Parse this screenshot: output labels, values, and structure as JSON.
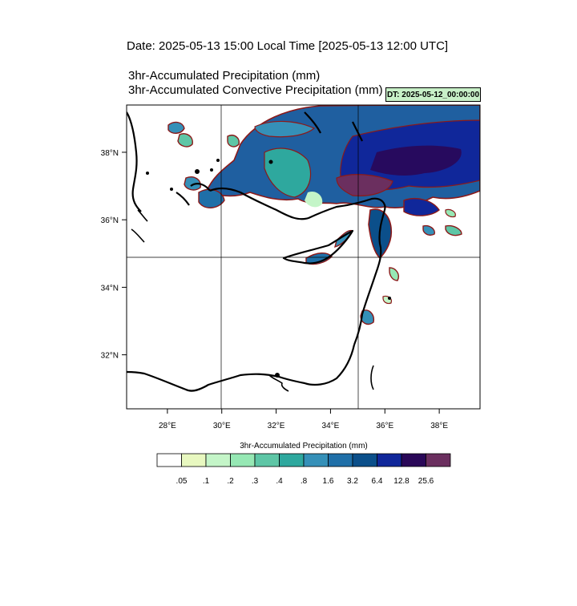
{
  "title": {
    "date_line": "Date: 2025-05-13  15:00 Local Time [2025-05-13  12:00 UTC]",
    "line1": "3hr-Accumulated Precipitation   (mm)",
    "line2": "3hr-Accumulated Convective Precipitation   (mm)",
    "dt_badge": "DT: 2025-05-12_00:00:00",
    "dt_badge_color": "#c8f0c8"
  },
  "map": {
    "lon_range": [
      26.5,
      39.5
    ],
    "lat_range": [
      30.4,
      39.4
    ],
    "lon_ticks": [
      {
        "value": 28,
        "label": "28°E"
      },
      {
        "value": 30,
        "label": "30°E"
      },
      {
        "value": 32,
        "label": "32°E"
      },
      {
        "value": 34,
        "label": "34°E"
      },
      {
        "value": 36,
        "label": "36°E"
      },
      {
        "value": 38,
        "label": "38°E"
      }
    ],
    "lat_ticks": [
      {
        "value": 32,
        "label": "32°N"
      },
      {
        "value": 34,
        "label": "34°N"
      },
      {
        "value": 36,
        "label": "36°N"
      },
      {
        "value": 38,
        "label": "38°N"
      }
    ],
    "gridlines": {
      "lon": [
        30,
        35
      ],
      "lat": [
        35
      ]
    },
    "contour_color": "#8b1a1a",
    "coast_color": "#000000"
  },
  "colorbar": {
    "title": "3hr-Accumulated Precipitation   (mm)",
    "colors": [
      "#ffffff",
      "#e8f8c0",
      "#c4f5c8",
      "#96e8b4",
      "#5ec6a6",
      "#2ea89e",
      "#3590b8",
      "#1f6fa8",
      "#0b4f8a",
      "#10279a",
      "#2a0858",
      "#6b2f5f"
    ],
    "labels": [
      ".05",
      ".1",
      ".2",
      ".3",
      ".4",
      ".8",
      "1.6",
      "3.2",
      "6.4",
      "12.8",
      "25.6"
    ]
  }
}
